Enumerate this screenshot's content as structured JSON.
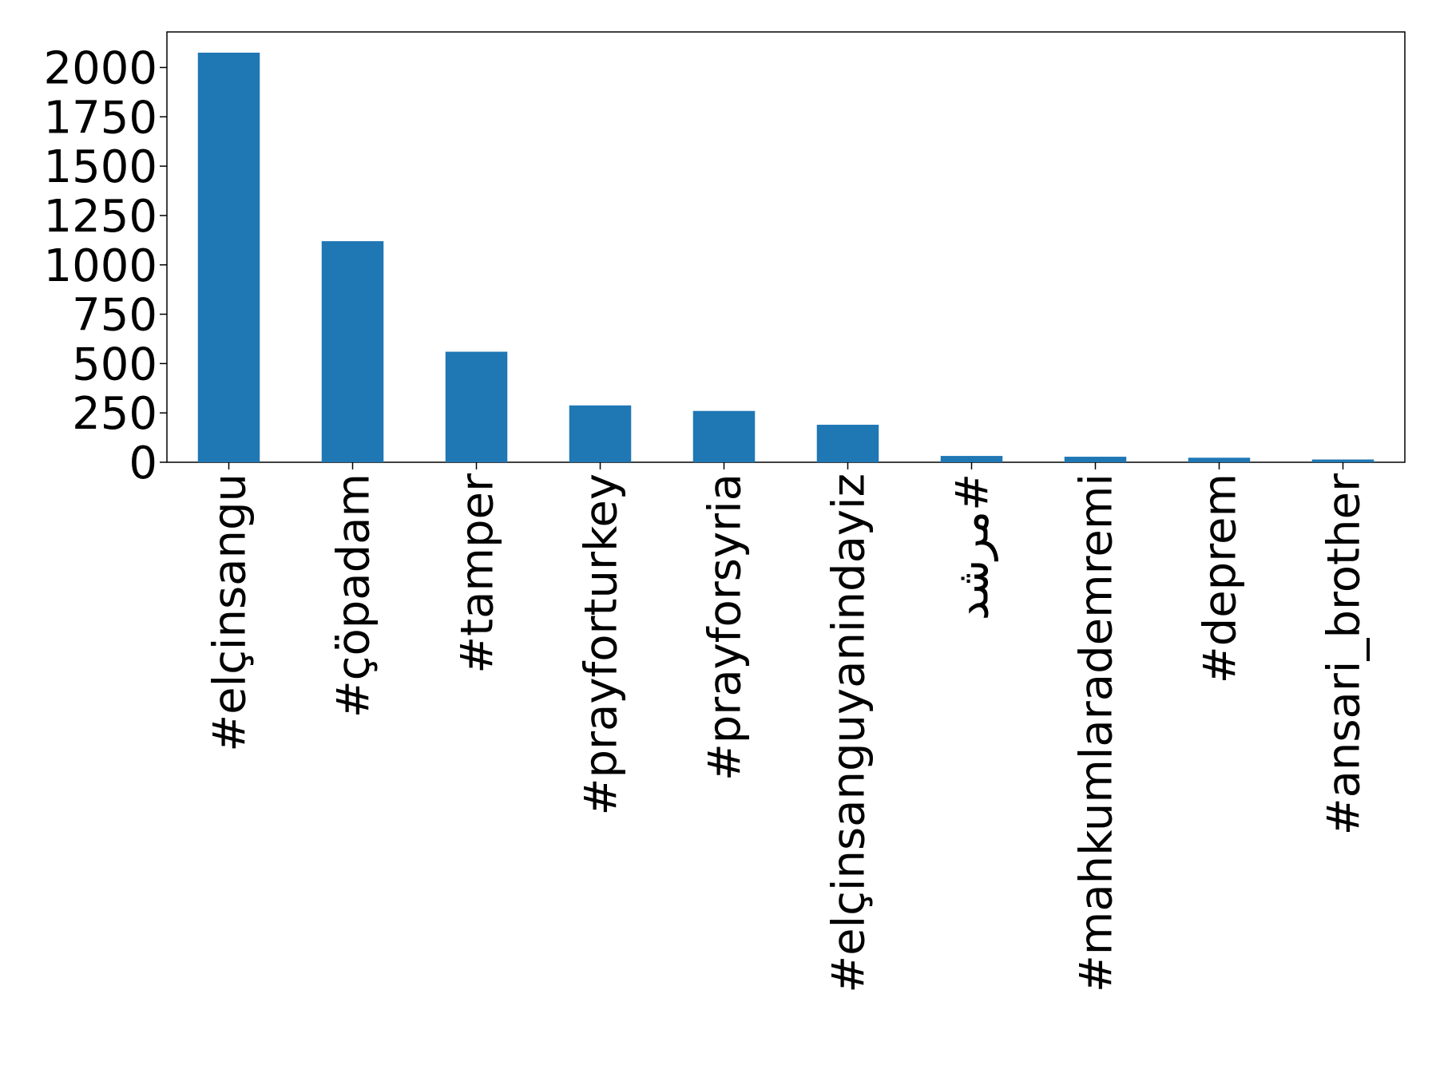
{
  "chart_data": {
    "type": "bar",
    "categories": [
      "#elçinsangu",
      "#çöpadam",
      "#tamper",
      "#prayforturkey",
      "#prayforsyria",
      "#elçinsanguyanindayiz",
      "#مرشد",
      "#mahkumlarademremi",
      "#deprem",
      "#ansari_brother"
    ],
    "values": [
      2075,
      1120,
      560,
      288,
      260,
      190,
      32,
      28,
      23,
      14
    ],
    "color": "#1f77b4",
    "ylim": [
      0,
      2180
    ],
    "yticks": [
      0,
      250,
      500,
      750,
      1000,
      1250,
      1500,
      1750,
      2000
    ],
    "grid": false
  }
}
